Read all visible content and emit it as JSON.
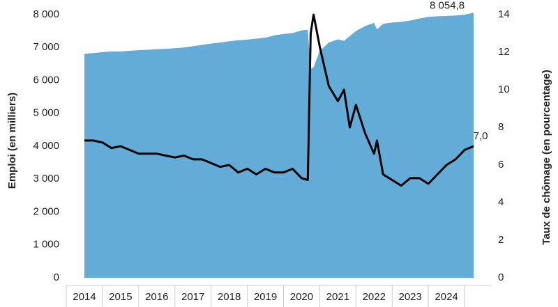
{
  "chart_data": {
    "type": "area-line",
    "ylabel": "Emploi (en milliers)",
    "y2label": "Taux de chômage (en pourcentage)",
    "x": [
      2014,
      2014.25,
      2014.5,
      2014.75,
      2015,
      2015.25,
      2015.5,
      2015.75,
      2016,
      2016.25,
      2016.5,
      2016.75,
      2017,
      2017.25,
      2017.5,
      2017.75,
      2018,
      2018.25,
      2018.5,
      2018.75,
      2019,
      2019.25,
      2019.5,
      2019.75,
      2020,
      2020.17,
      2020.25,
      2020.33,
      2020.5,
      2020.75,
      2021,
      2021.17,
      2021.33,
      2021.5,
      2021.75,
      2022,
      2022.08,
      2022.25,
      2022.5,
      2022.75,
      2023,
      2023.25,
      2023.5,
      2023.75,
      2024,
      2024.25,
      2024.5,
      2024.75
    ],
    "series": [
      {
        "name": "Emploi",
        "color": "#63acd7",
        "kind": "area",
        "values": [
          6810,
          6830,
          6860,
          6880,
          6880,
          6900,
          6920,
          6930,
          6950,
          6960,
          6980,
          7000,
          7040,
          7080,
          7120,
          7150,
          7190,
          7220,
          7240,
          7270,
          7300,
          7370,
          7410,
          7440,
          7520,
          7540,
          6350,
          6400,
          6900,
          7150,
          7250,
          7200,
          7350,
          7500,
          7650,
          7750,
          7550,
          7720,
          7760,
          7780,
          7820,
          7880,
          7930,
          7950,
          7960,
          7970,
          8000,
          8054.8
        ]
      },
      {
        "name": "Taux de chômage",
        "color": "#000000",
        "kind": "line",
        "axis": "y2",
        "values": [
          7.3,
          7.3,
          7.2,
          6.9,
          7.0,
          6.8,
          6.6,
          6.6,
          6.6,
          6.5,
          6.4,
          6.5,
          6.3,
          6.3,
          6.1,
          5.9,
          6.0,
          5.6,
          5.8,
          5.5,
          5.8,
          5.6,
          5.6,
          5.8,
          5.3,
          5.2,
          13.0,
          14.0,
          12.3,
          10.2,
          9.4,
          10.0,
          8.0,
          9.2,
          7.7,
          6.6,
          7.3,
          5.5,
          5.2,
          4.9,
          5.3,
          5.3,
          5.0,
          5.5,
          6.0,
          6.3,
          6.8,
          7.0
        ]
      }
    ],
    "annotations": [
      "8 054,8",
      "7,0"
    ],
    "xlim": [
      2013.5,
      2025.25
    ],
    "xticks": [
      2014,
      2015,
      2016,
      2017,
      2018,
      2019,
      2020,
      2021,
      2022,
      2023,
      2024
    ],
    "ylim": [
      0,
      8000
    ],
    "yticks": [
      0,
      {
        "value": 1000,
        "label": "1 000"
      },
      {
        "value": 2000,
        "label": "2 000"
      },
      {
        "value": 3000,
        "label": "3 000"
      },
      {
        "value": 4000,
        "label": "4 000"
      },
      {
        "value": 5000,
        "label": "5 000"
      },
      {
        "value": 6000,
        "label": "6 000"
      },
      {
        "value": 7000,
        "label": "7 000"
      },
      {
        "value": 8000,
        "label": "8 000"
      }
    ],
    "y2lim": [
      0,
      14
    ],
    "y2ticks": [
      0,
      2,
      4,
      6,
      8,
      10,
      12,
      14
    ]
  }
}
